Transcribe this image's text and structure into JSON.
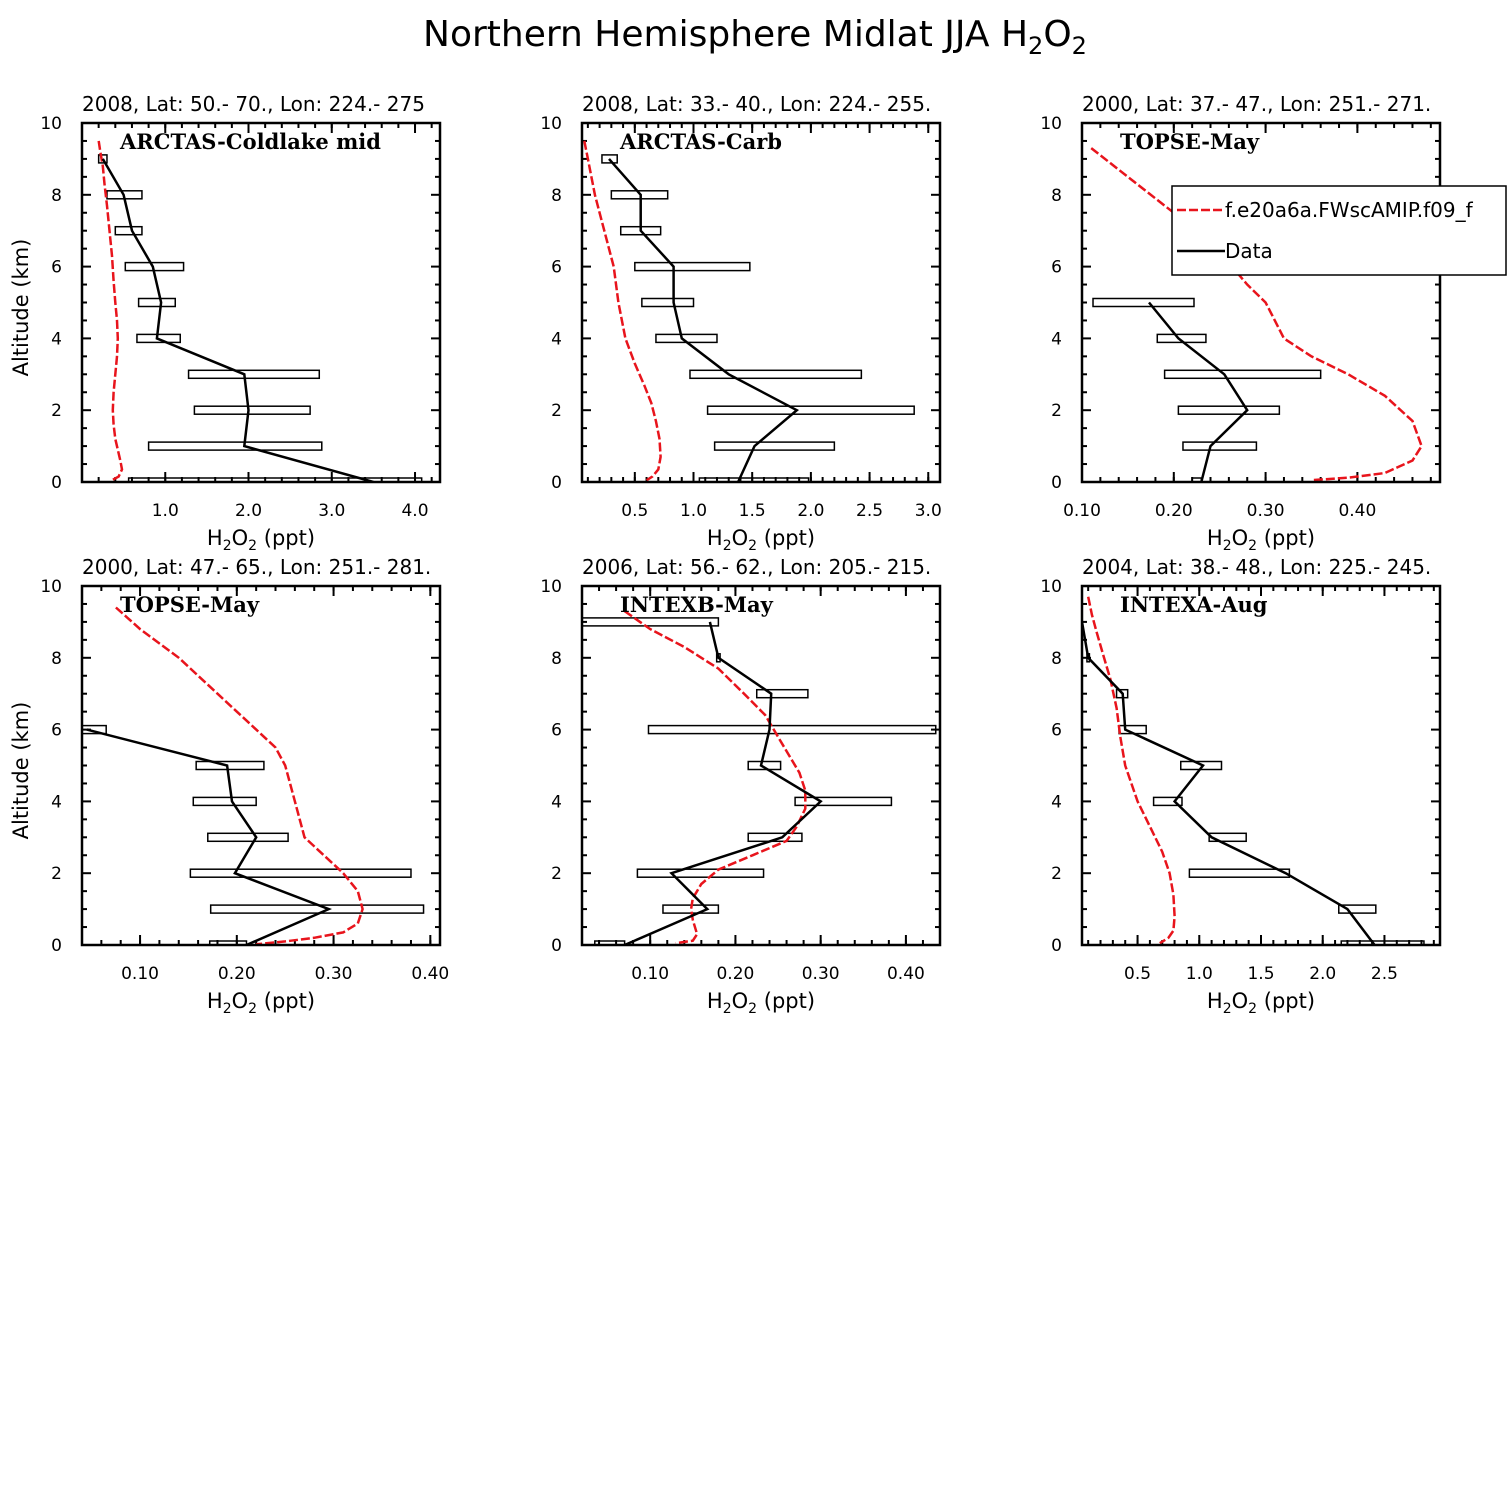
{
  "figure": {
    "title": "Northern Hemisphere Midlat JJA H",
    "title_sub1": "2",
    "title_mid": "O",
    "title_sub2": "2"
  },
  "legend": {
    "model_label": "f.e20a6a.FWscAMIP.f09_f",
    "data_label": "Data"
  },
  "colors": {
    "model": "#e8141c",
    "data": "#000000"
  },
  "chart_data": [
    {
      "type": "line",
      "title": "2008, Lat:  50.- 70., Lon: 224.- 275",
      "campaign": "ARCTAS-Coldlake mid",
      "xlabel": "H2O2 (ppt)",
      "ylabel": "Altitude (km)",
      "xlim": [
        0.0,
        4.3
      ],
      "ylim": [
        0,
        10
      ],
      "xticks": [
        1.0,
        2.0,
        3.0,
        4.0
      ],
      "xtick_labels": [
        "1.0",
        "2.0",
        "3.0",
        "4.0"
      ],
      "yticks": [
        0,
        2,
        4,
        6,
        8,
        10
      ],
      "show_ylabel": true,
      "model": {
        "x": [
          0.2,
          0.22,
          0.25,
          0.27,
          0.3,
          0.33,
          0.36,
          0.38,
          0.4,
          0.42,
          0.43,
          0.42,
          0.4,
          0.38,
          0.37,
          0.38,
          0.4,
          0.43,
          0.46,
          0.48,
          0.44,
          0.36
        ],
        "y": [
          9.5,
          9.2,
          8.8,
          8.3,
          7.7,
          7.0,
          6.3,
          5.6,
          5.0,
          4.5,
          4.0,
          3.5,
          3.0,
          2.5,
          2.0,
          1.6,
          1.2,
          0.9,
          0.6,
          0.35,
          0.15,
          0.05
        ]
      },
      "data": {
        "x": [
          0.25,
          0.5,
          0.6,
          0.85,
          0.95,
          0.9,
          1.95,
          2.0,
          1.95,
          3.5
        ],
        "y": [
          9.0,
          8.0,
          7.0,
          6.0,
          5.0,
          4.0,
          3.0,
          2.0,
          1.0,
          0.0
        ]
      },
      "bars": [
        {
          "y": 9.0,
          "lo": 0.2,
          "hi": 0.3
        },
        {
          "y": 8.0,
          "lo": 0.3,
          "hi": 0.72
        },
        {
          "y": 7.0,
          "lo": 0.4,
          "hi": 0.72
        },
        {
          "y": 6.0,
          "lo": 0.52,
          "hi": 1.22
        },
        {
          "y": 5.0,
          "lo": 0.68,
          "hi": 1.12
        },
        {
          "y": 4.0,
          "lo": 0.66,
          "hi": 1.18
        },
        {
          "y": 3.0,
          "lo": 1.28,
          "hi": 2.85
        },
        {
          "y": 2.0,
          "lo": 1.35,
          "hi": 2.74
        },
        {
          "y": 1.0,
          "lo": 0.8,
          "hi": 2.88
        },
        {
          "y": 0.0,
          "lo": 0.56,
          "hi": 4.08
        }
      ]
    },
    {
      "type": "line",
      "title": "2008, Lat:  33.- 40., Lon: 224.- 255.",
      "campaign": "ARCTAS-Carb",
      "xlabel": "H2O2 (ppt)",
      "ylabel": "Altitude (km)",
      "xlim": [
        0.05,
        3.1
      ],
      "ylim": [
        0,
        10
      ],
      "xticks": [
        0.5,
        1.0,
        1.5,
        2.0,
        2.5,
        3.0
      ],
      "xtick_labels": [
        "0.5",
        "1.0",
        "1.5",
        "2.0",
        "2.5",
        "3.0"
      ],
      "yticks": [
        0,
        2,
        4,
        6,
        8,
        10
      ],
      "show_ylabel": false,
      "model": {
        "x": [
          0.07,
          0.1,
          0.13,
          0.16,
          0.2,
          0.24,
          0.28,
          0.32,
          0.36,
          0.42,
          0.5,
          0.58,
          0.64,
          0.68,
          0.71,
          0.72,
          0.7,
          0.65,
          0.6
        ],
        "y": [
          9.5,
          9.0,
          8.5,
          8.0,
          7.5,
          7.0,
          6.5,
          6.0,
          5.0,
          4.0,
          3.3,
          2.7,
          2.2,
          1.7,
          1.2,
          0.7,
          0.35,
          0.15,
          0.05
        ]
      },
      "data": {
        "x": [
          0.28,
          0.55,
          0.55,
          0.83,
          0.83,
          0.9,
          1.3,
          1.88,
          1.52,
          1.38
        ],
        "y": [
          9.0,
          8.0,
          7.0,
          6.0,
          5.0,
          4.0,
          3.0,
          2.0,
          1.0,
          0.0
        ]
      },
      "bars": [
        {
          "y": 9.0,
          "lo": 0.22,
          "hi": 0.35
        },
        {
          "y": 8.0,
          "lo": 0.3,
          "hi": 0.78
        },
        {
          "y": 7.0,
          "lo": 0.38,
          "hi": 0.72
        },
        {
          "y": 6.0,
          "lo": 0.5,
          "hi": 1.48
        },
        {
          "y": 5.0,
          "lo": 0.56,
          "hi": 1.0
        },
        {
          "y": 4.0,
          "lo": 0.68,
          "hi": 1.2
        },
        {
          "y": 3.0,
          "lo": 0.97,
          "hi": 2.43
        },
        {
          "y": 2.0,
          "lo": 1.12,
          "hi": 2.88
        },
        {
          "y": 1.0,
          "lo": 1.18,
          "hi": 2.2
        },
        {
          "y": 0.0,
          "lo": 1.05,
          "hi": 1.98
        }
      ]
    },
    {
      "type": "line",
      "title": "2000, Lat: 37.- 47., Lon: 251.- 271.",
      "campaign": "TOPSE-May",
      "xlabel": "H2O2 (ppt)",
      "ylabel": "Altitude (km)",
      "xlim": [
        0.1,
        0.49
      ],
      "ylim": [
        0,
        10
      ],
      "xticks": [
        0.1,
        0.2,
        0.3,
        0.4
      ],
      "xtick_labels": [
        "0.10",
        "0.20",
        "0.30",
        "0.40"
      ],
      "yticks": [
        0,
        2,
        4,
        6,
        8,
        10
      ],
      "show_ylabel": false,
      "legend": "top-right",
      "model": {
        "x": [
          0.11,
          0.15,
          0.2,
          0.25,
          0.28,
          0.3,
          0.31,
          0.32,
          0.35,
          0.39,
          0.43,
          0.46,
          0.47,
          0.46,
          0.43,
          0.39,
          0.35
        ],
        "y": [
          9.3,
          8.5,
          7.5,
          6.4,
          5.5,
          5.0,
          4.5,
          4.0,
          3.5,
          3.0,
          2.4,
          1.7,
          1.0,
          0.6,
          0.25,
          0.12,
          0.05
        ]
      },
      "data": {
        "x": [
          0.173,
          0.205,
          0.255,
          0.28,
          0.24,
          0.23
        ],
        "y": [
          5.0,
          4.0,
          3.0,
          2.0,
          1.0,
          0.0
        ]
      },
      "bars": [
        {
          "y": 5.0,
          "lo": 0.112,
          "hi": 0.222
        },
        {
          "y": 4.0,
          "lo": 0.182,
          "hi": 0.235
        },
        {
          "y": 3.0,
          "lo": 0.19,
          "hi": 0.36
        },
        {
          "y": 2.0,
          "lo": 0.205,
          "hi": 0.315
        },
        {
          "y": 1.0,
          "lo": 0.21,
          "hi": 0.29
        },
        {
          "y": 0.0,
          "lo": 0.22,
          "hi": 0.23
        }
      ]
    },
    {
      "type": "line",
      "title": "2000, Lat: 47.- 65., Lon: 251.- 281.",
      "campaign": "TOPSE-May",
      "xlabel": "H2O2 (ppt)",
      "ylabel": "Altitude (km)",
      "xlim": [
        0.04,
        0.41
      ],
      "ylim": [
        0,
        10
      ],
      "xticks": [
        0.1,
        0.2,
        0.3,
        0.4
      ],
      "xtick_labels": [
        "0.10",
        "0.20",
        "0.30",
        "0.40"
      ],
      "yticks": [
        0,
        2,
        4,
        6,
        8,
        10
      ],
      "show_ylabel": true,
      "model": {
        "x": [
          0.075,
          0.1,
          0.14,
          0.18,
          0.22,
          0.24,
          0.25,
          0.26,
          0.27,
          0.29,
          0.31,
          0.325,
          0.33,
          0.325,
          0.31,
          0.28,
          0.25,
          0.22
        ],
        "y": [
          9.4,
          8.8,
          8.0,
          7.0,
          6.0,
          5.5,
          5.0,
          4.0,
          3.0,
          2.5,
          2.0,
          1.5,
          1.0,
          0.6,
          0.35,
          0.2,
          0.1,
          0.02
        ]
      },
      "data": {
        "x": [
          0.045,
          0.19,
          0.195,
          0.22,
          0.198,
          0.295,
          0.21
        ],
        "y": [
          6.0,
          5.0,
          4.0,
          3.0,
          2.0,
          1.0,
          0.0
        ]
      },
      "bars": [
        {
          "y": 6.0,
          "lo": 0.04,
          "hi": 0.065
        },
        {
          "y": 5.0,
          "lo": 0.158,
          "hi": 0.228
        },
        {
          "y": 4.0,
          "lo": 0.155,
          "hi": 0.22
        },
        {
          "y": 3.0,
          "lo": 0.17,
          "hi": 0.253
        },
        {
          "y": 2.0,
          "lo": 0.152,
          "hi": 0.38
        },
        {
          "y": 1.0,
          "lo": 0.173,
          "hi": 0.393
        },
        {
          "y": 0.0,
          "lo": 0.172,
          "hi": 0.21
        }
      ]
    },
    {
      "type": "line",
      "title": "2006, Lat: 56.- 62., Lon: 205.- 215.",
      "campaign": "INTEXB-May",
      "xlabel": "H2O2 (ppt)",
      "ylabel": "Altitude (km)",
      "xlim": [
        0.02,
        0.44
      ],
      "ylim": [
        0,
        10
      ],
      "xticks": [
        0.1,
        0.2,
        0.3,
        0.4
      ],
      "xtick_labels": [
        "0.10",
        "0.20",
        "0.30",
        "0.40"
      ],
      "yticks": [
        0,
        2,
        4,
        6,
        8,
        10
      ],
      "show_ylabel": false,
      "model": {
        "x": [
          0.07,
          0.1,
          0.14,
          0.18,
          0.21,
          0.235,
          0.25,
          0.265,
          0.275,
          0.282,
          0.282,
          0.272,
          0.26,
          0.22,
          0.18,
          0.16,
          0.15,
          0.148,
          0.15,
          0.155,
          0.15,
          0.13
        ],
        "y": [
          9.3,
          8.8,
          8.3,
          7.7,
          7.0,
          6.4,
          5.8,
          5.2,
          4.8,
          4.3,
          3.8,
          3.3,
          2.9,
          2.5,
          2.1,
          1.7,
          1.3,
          1.0,
          0.7,
          0.3,
          0.12,
          0.05
        ]
      },
      "data": {
        "x": [
          0.17,
          0.18,
          0.242,
          0.24,
          0.23,
          0.3,
          0.255,
          0.125,
          0.167,
          0.07
        ],
        "y": [
          9.0,
          8.0,
          7.0,
          6.0,
          5.0,
          4.0,
          3.0,
          2.0,
          1.0,
          0.0
        ]
      },
      "bars": [
        {
          "y": 9.0,
          "lo": 0.02,
          "hi": 0.18
        },
        {
          "y": 8.0,
          "lo": 0.178,
          "hi": 0.182
        },
        {
          "y": 7.0,
          "lo": 0.225,
          "hi": 0.285
        },
        {
          "y": 6.0,
          "lo": 0.098,
          "hi": 0.435
        },
        {
          "y": 5.0,
          "lo": 0.215,
          "hi": 0.253
        },
        {
          "y": 4.0,
          "lo": 0.27,
          "hi": 0.383
        },
        {
          "y": 3.0,
          "lo": 0.215,
          "hi": 0.278
        },
        {
          "y": 2.0,
          "lo": 0.085,
          "hi": 0.233
        },
        {
          "y": 1.0,
          "lo": 0.115,
          "hi": 0.18
        },
        {
          "y": 0.0,
          "lo": 0.035,
          "hi": 0.07
        }
      ]
    },
    {
      "type": "line",
      "title": "2004, Lat: 38.- 48., Lon: 225.- 245.",
      "campaign": "INTEXA-Aug",
      "xlabel": "H2O2 (ppt)",
      "ylabel": "Altitude (km)",
      "xlim": [
        0.05,
        2.95
      ],
      "ylim": [
        0,
        10
      ],
      "xticks": [
        0.5,
        1.0,
        1.5,
        2.0,
        2.5
      ],
      "xtick_labels": [
        "0.5",
        "1.0",
        "1.5",
        "2.0",
        "2.5"
      ],
      "yticks": [
        0,
        2,
        4,
        6,
        8,
        10
      ],
      "show_ylabel": false,
      "model": {
        "x": [
          0.1,
          0.13,
          0.17,
          0.22,
          0.28,
          0.33,
          0.36,
          0.4,
          0.45,
          0.5,
          0.6,
          0.7,
          0.76,
          0.79,
          0.8,
          0.79,
          0.75,
          0.68
        ],
        "y": [
          9.7,
          9.2,
          8.7,
          8.1,
          7.4,
          6.6,
          5.8,
          5.0,
          4.5,
          4.0,
          3.3,
          2.6,
          2.0,
          1.4,
          0.8,
          0.4,
          0.2,
          0.05
        ]
      },
      "data": {
        "x": [
          0.05,
          0.1,
          0.38,
          0.4,
          1.03,
          0.8,
          1.1,
          1.7,
          2.2,
          2.42
        ],
        "y": [
          9.0,
          8.0,
          7.0,
          6.0,
          5.0,
          4.0,
          3.0,
          2.0,
          1.0,
          0.0
        ]
      },
      "bars": [
        {
          "y": 8.0,
          "lo": 0.09,
          "hi": 0.11
        },
        {
          "y": 7.0,
          "lo": 0.33,
          "hi": 0.42
        },
        {
          "y": 6.0,
          "lo": 0.35,
          "hi": 0.57
        },
        {
          "y": 5.0,
          "lo": 0.85,
          "hi": 1.18
        },
        {
          "y": 4.0,
          "lo": 0.63,
          "hi": 0.86
        },
        {
          "y": 3.0,
          "lo": 1.08,
          "hi": 1.38
        },
        {
          "y": 2.0,
          "lo": 0.92,
          "hi": 1.73
        },
        {
          "y": 1.0,
          "lo": 2.13,
          "hi": 2.43
        },
        {
          "y": 0.0,
          "lo": 2.15,
          "hi": 2.82
        }
      ]
    }
  ]
}
